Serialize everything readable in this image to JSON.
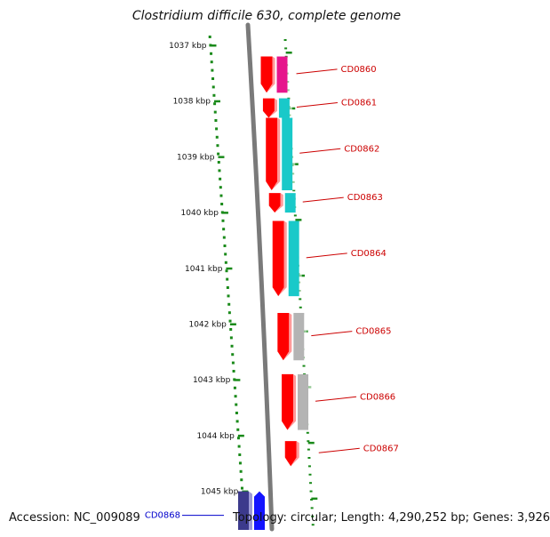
{
  "title": "Clostridium difficile 630, complete genome",
  "accession": "Accession: NC_009089",
  "topology": "Topology: circular; Length: 4,290,252 bp; Genes: 3,926",
  "colors": {
    "tick": "#1a8a1a",
    "gene_red": "#ff0000",
    "label_red": "#cc0000",
    "label_blue": "#0000cc",
    "magenta": "#e6168c",
    "cyan": "#19c9c9",
    "gray": "#b4b4b4",
    "navy": "#3c3a8c",
    "blue": "#1414ff",
    "backbone": "#7a7a7a"
  },
  "ruler": [
    "1037 kbp",
    "1038 kbp",
    "1039 kbp",
    "1040 kbp",
    "1041 kbp",
    "1042 kbp",
    "1043 kbp",
    "1044 kbp",
    "1045 kbp"
  ],
  "genes": [
    {
      "label": "CD0860",
      "partner": "magenta",
      "start_kbp": 1037.2,
      "end_kbp": 1037.85
    },
    {
      "label": "CD0861",
      "partner": "cyan",
      "start_kbp": 1037.95,
      "end_kbp": 1038.3
    },
    {
      "label": "CD0862",
      "partner": "cyan",
      "start_kbp": 1038.3,
      "end_kbp": 1039.6
    },
    {
      "label": "CD0863",
      "partner": "cyan",
      "start_kbp": 1039.65,
      "end_kbp": 1040.0
    },
    {
      "label": "CD0864",
      "partner": "cyan",
      "start_kbp": 1040.15,
      "end_kbp": 1041.5
    },
    {
      "label": "CD0865",
      "partner": "gray",
      "start_kbp": 1041.8,
      "end_kbp": 1042.65
    },
    {
      "label": "CD0866",
      "partner": "gray",
      "start_kbp": 1042.9,
      "end_kbp": 1043.9
    },
    {
      "label": "CD0867",
      "partner": "none",
      "start_kbp": 1044.1,
      "end_kbp": 1044.55
    },
    {
      "label": "CD0868",
      "partner": "navy",
      "start_kbp": 1045.0,
      "end_kbp": 1045.9
    }
  ]
}
